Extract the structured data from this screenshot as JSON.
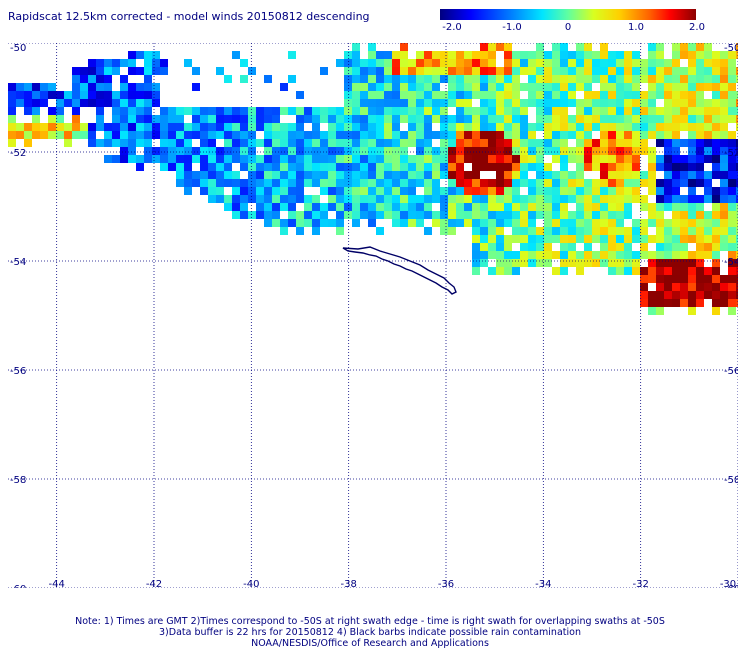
{
  "header": {
    "title": "Rapidscat 12.5km corrected - model winds 20150812 descending"
  },
  "colorbar": {
    "labels": [
      "-2.0",
      "-1.0",
      "0",
      "1.0",
      "2.0"
    ],
    "min": -2.0,
    "max": 2.0
  },
  "map": {
    "lat_labels": [
      "-50",
      "-52",
      "-54",
      "-56",
      "-58",
      "-60"
    ],
    "lon_labels": [
      "-44",
      "-42",
      "-40",
      "-38",
      "-36",
      "-34",
      "-32",
      "-30"
    ],
    "lat_range": [
      -60,
      -50
    ],
    "lon_range": [
      -45,
      -30
    ],
    "grid": "dotted"
  },
  "footer": {
    "note_line1": "Note: 1) Times are GMT 2)Times correspond to -50S at right swath edge - time is right swath for overlapping swaths at -50S",
    "note_line2": "3)Data buffer is 22 hrs for 20150812 4) Black barbs indicate possible rain contamination",
    "note_line3": "NOAA/NESDIS/Office of Research and Applications"
  }
}
